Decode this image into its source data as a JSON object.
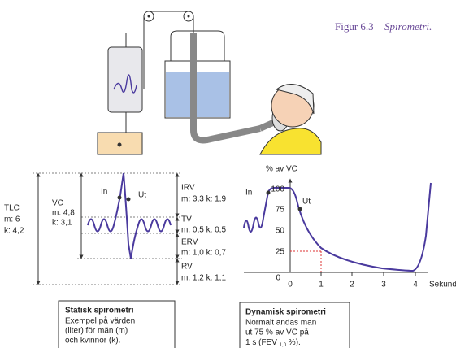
{
  "caption": {
    "label": "Figur 6.3",
    "title": "Spirometri."
  },
  "static": {
    "volumes": [
      {
        "name": "TLC",
        "values": [
          "m: 6",
          "k:  4,2"
        ]
      },
      {
        "name": "VC",
        "values": [
          "m: 4,8",
          "k:  3,1"
        ]
      },
      {
        "name": "IRV",
        "values": [
          "m: 3,3  k: 1,9"
        ]
      },
      {
        "name": "TV",
        "values": [
          "m:  0,5  k: 0,5"
        ]
      },
      {
        "name": "ERV",
        "values": [
          "m: 1,0  k: 0,7"
        ]
      },
      {
        "name": "RV",
        "values": [
          "m: 1,2  k: 1,1"
        ]
      }
    ],
    "in": "In",
    "out": "Ut",
    "box": {
      "title": "Statisk spirometri",
      "lines": [
        "Exempel på värden",
        "(liter) för män (m)",
        "och kvinnor (k)."
      ]
    }
  },
  "dynamic": {
    "axis_title": "% av VC",
    "yticks": [
      "0",
      "25",
      "50",
      "75",
      "100"
    ],
    "xticks": [
      "0",
      "1",
      "2",
      "3",
      "4"
    ],
    "x_unit": "Sekund",
    "in": "In",
    "out": "Ut",
    "box": {
      "title": "Dynamisk spirometri",
      "lines": [
        "Normalt andas man",
        "ut  75 % av VC på",
        "1 s (FEV "
      ],
      "subscript": "1,0",
      "suffix": " %)."
    }
  }
}
